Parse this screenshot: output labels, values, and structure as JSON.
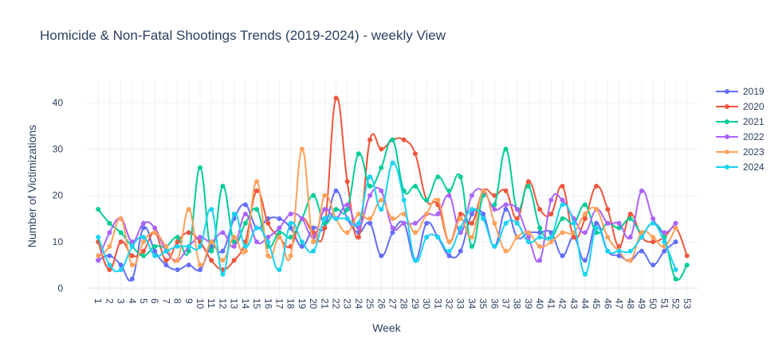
{
  "chart_data": {
    "type": "line",
    "title": "Homicide & Non-Fatal Shootings Trends (2019-2024) - weekly View",
    "xlabel": "Week",
    "ylabel": "Number of Victimizations",
    "xlim": [
      0,
      54
    ],
    "ylim": [
      -1.5,
      45
    ],
    "yticks": [
      0,
      10,
      20,
      30,
      40
    ],
    "x": [
      1,
      2,
      3,
      4,
      5,
      6,
      7,
      8,
      9,
      10,
      11,
      12,
      13,
      14,
      15,
      16,
      17,
      18,
      19,
      20,
      21,
      22,
      23,
      24,
      25,
      26,
      27,
      28,
      29,
      30,
      31,
      32,
      33,
      34,
      35,
      36,
      37,
      38,
      39,
      40,
      41,
      42,
      43,
      44,
      45,
      46,
      47,
      48,
      49,
      50,
      51,
      52,
      53
    ],
    "grid": true,
    "legend_position": "top-right",
    "series": [
      {
        "name": "2019",
        "color": "#636efa",
        "values": [
          6,
          7,
          5,
          2,
          13,
          8,
          5,
          4,
          5,
          4,
          9,
          8,
          15,
          18,
          13,
          15,
          15,
          13,
          9,
          13,
          13,
          21,
          15,
          12,
          14,
          7,
          12,
          14,
          6,
          14,
          11,
          7,
          8,
          16,
          16,
          9,
          17,
          11,
          12,
          12,
          12,
          7,
          11,
          6,
          14,
          8,
          7,
          6,
          8,
          5,
          8,
          10,
          null
        ]
      },
      {
        "name": "2020",
        "color": "#ef553b",
        "values": [
          10,
          4,
          10,
          7,
          8,
          12,
          6,
          10,
          12,
          10,
          6,
          4,
          6,
          10,
          21,
          14,
          11,
          9,
          15,
          12,
          13,
          41,
          23,
          11,
          32,
          30,
          32,
          32,
          29,
          19,
          18,
          10,
          16,
          14,
          21,
          20,
          21,
          15,
          23,
          17,
          16,
          22,
          11,
          15,
          22,
          17,
          9,
          16,
          11,
          10,
          11,
          13,
          7
        ]
      },
      {
        "name": "2021",
        "color": "#00cc96",
        "values": [
          17,
          14,
          12,
          9,
          7,
          9,
          9,
          11,
          8,
          26,
          8,
          22,
          10,
          14,
          17,
          9,
          12,
          11,
          15,
          20,
          14,
          17,
          17,
          29,
          22,
          26,
          32,
          21,
          22,
          19,
          24,
          21,
          24,
          9,
          20,
          18,
          30,
          17,
          22,
          13,
          11,
          15,
          14,
          18,
          12,
          14,
          13,
          15,
          12,
          14,
          11,
          2,
          5
        ]
      },
      {
        "name": "2022",
        "color": "#ab63fa",
        "values": [
          6,
          12,
          15,
          10,
          14,
          13,
          8,
          6,
          9,
          11,
          10,
          12,
          9,
          16,
          10,
          11,
          13,
          16,
          15,
          11,
          17,
          15,
          18,
          13,
          20,
          21,
          13,
          14,
          14,
          16,
          16,
          20,
          12,
          20,
          21,
          17,
          18,
          17,
          11,
          6,
          19,
          19,
          15,
          12,
          17,
          14,
          14,
          11,
          21,
          15,
          12,
          14,
          null
        ]
      },
      {
        "name": "2023",
        "color": "#ffa15a",
        "values": [
          7,
          9,
          15,
          5,
          10,
          12,
          9,
          6,
          17,
          5,
          10,
          6,
          11,
          8,
          23,
          7,
          11,
          7,
          30,
          10,
          20,
          15,
          12,
          16,
          15,
          19,
          15,
          16,
          12,
          16,
          19,
          10,
          15,
          11,
          21,
          14,
          8,
          11,
          12,
          9,
          10,
          12,
          12,
          16,
          17,
          11,
          8,
          6,
          12,
          11,
          9,
          13,
          null
        ]
      },
      {
        "name": "2024",
        "color": "#19d3f3",
        "values": [
          11,
          5,
          4,
          9,
          11,
          7,
          8,
          9,
          9,
          9,
          17,
          3,
          16,
          9,
          13,
          10,
          4,
          14,
          10,
          8,
          15,
          15,
          15,
          14,
          24,
          17,
          27,
          19,
          6,
          11,
          11,
          8,
          13,
          17,
          15,
          9,
          14,
          14,
          10,
          11,
          11,
          18,
          14,
          3,
          13,
          8,
          8,
          8,
          11,
          14,
          10,
          4,
          null
        ]
      }
    ]
  }
}
